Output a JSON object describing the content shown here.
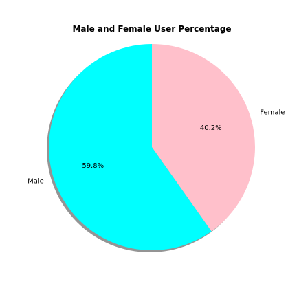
{
  "chart_data": {
    "type": "pie",
    "title": "Male and Female User Percentage",
    "categories": [
      "Male",
      "Female"
    ],
    "values": [
      59.8,
      40.2
    ],
    "percent_labels": [
      "59.8%",
      "40.2%"
    ],
    "colors": [
      "#00ffff",
      "#ffc0cb"
    ],
    "start_angle_deg": 90,
    "direction": "counterclockwise",
    "shadow": true,
    "legend": "none"
  }
}
